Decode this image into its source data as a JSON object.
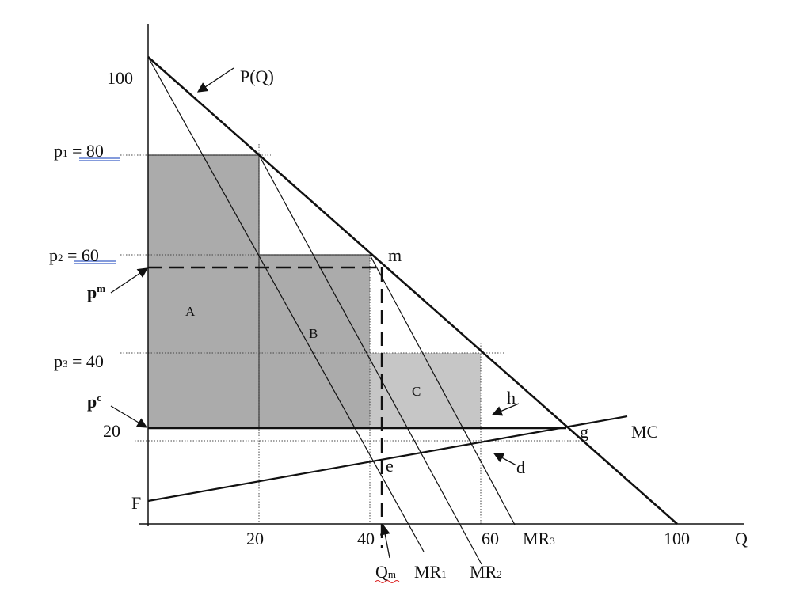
{
  "labels": {
    "y100": "100",
    "p1": "p",
    "p1_sub": "1",
    "p1_val": " =  80",
    "p2": "p",
    "p2_sub": "2",
    "p2_val": " =  60",
    "pm": "p",
    "pm_sup": "m",
    "p3": "p",
    "p3_sub": "3",
    "p3_val": " = 40",
    "pc": "p",
    "pc_sup": "c",
    "y20": "20",
    "F": "F",
    "demand": "P(Q)",
    "m": "m",
    "h": "h",
    "g": "g",
    "d": "d",
    "e": "e",
    "MC": "MC",
    "areaA": "A",
    "areaB": "B",
    "areaC": "C",
    "x20": "20",
    "x40": "40",
    "x60": "60",
    "x100": "100",
    "xQ": "Q",
    "MR3": "MR",
    "MR3_sub": "3",
    "Qm": "Q",
    "Qm_sub": "m",
    "MR1": "MR",
    "MR1_sub": "1",
    "MR2": "MR",
    "MR2_sub": "2"
  },
  "colors": {
    "dark_fill": "#ababab",
    "light_fill": "#c6c6c6",
    "underline": "#3a5fc8"
  }
}
